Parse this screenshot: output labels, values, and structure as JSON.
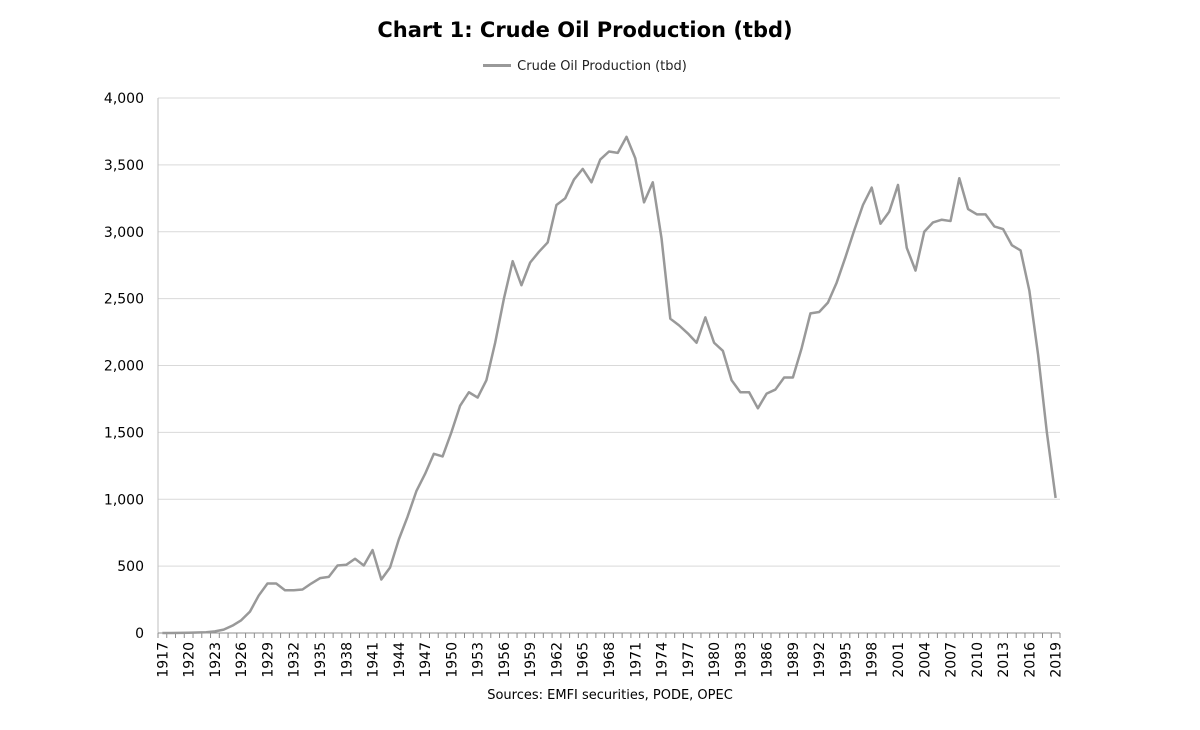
{
  "chart_data": {
    "type": "line",
    "title": "Chart 1: Crude Oil Production (tbd)",
    "legend": "top-center",
    "source": "Sources: EMFI securities, PODE, OPEC",
    "ylim": [
      0,
      4000
    ],
    "yticks": [
      0,
      500,
      1000,
      1500,
      2000,
      2500,
      3000,
      3500,
      4000
    ],
    "ytick_labels": [
      "0",
      "500",
      "1,000",
      "1,500",
      "2,000",
      "2,500",
      "3,000",
      "3,500",
      "4,000"
    ],
    "xtick_labels": [
      "1917",
      "1920",
      "1923",
      "1926",
      "1929",
      "1932",
      "1935",
      "1938",
      "1941",
      "1944",
      "1947",
      "1950",
      "1953",
      "1956",
      "1959",
      "1962",
      "1965",
      "1968",
      "1971",
      "1974",
      "1977",
      "1980",
      "1983",
      "1986",
      "1989",
      "1992",
      "1995",
      "1998",
      "2001",
      "2004",
      "2007",
      "2010",
      "2013",
      "2016",
      "2019"
    ],
    "grid": true,
    "series": [
      {
        "name": "Crude Oil Production (tbd)",
        "color": "#999999",
        "x": [
          "1917",
          "1918",
          "1919",
          "1920",
          "1921",
          "1922",
          "1923",
          "1924",
          "1925",
          "1926",
          "1927",
          "1928",
          "1929",
          "1930",
          "1931",
          "1932",
          "1933",
          "1934",
          "1935",
          "1936",
          "1937",
          "1938",
          "1939",
          "1940",
          "1941",
          "1942",
          "1943",
          "1944",
          "1945",
          "1946",
          "1947",
          "1948",
          "1949",
          "1950",
          "1951",
          "1952",
          "1953",
          "1954",
          "1955",
          "1956",
          "1957",
          "1958",
          "1959",
          "1960",
          "1961",
          "1962",
          "1963",
          "1964",
          "1965",
          "1966",
          "1967",
          "1968",
          "1969",
          "1970",
          "1971",
          "1972",
          "1973",
          "1974",
          "1975",
          "1976",
          "1977",
          "1978",
          "1979",
          "1980",
          "1981",
          "1982",
          "1983",
          "1984",
          "1985",
          "1986",
          "1987",
          "1988",
          "1989",
          "1990",
          "1991",
          "1992",
          "1993",
          "1994",
          "1995",
          "1996",
          "1997",
          "1998",
          "1999",
          "2000",
          "2001",
          "2002",
          "2003",
          "2004",
          "2005",
          "2006",
          "2007",
          "2008",
          "2009",
          "2010",
          "2011",
          "2012",
          "2013",
          "2014",
          "2015",
          "2016",
          "2017",
          "2018",
          "2019"
        ],
        "values": [
          0,
          0,
          1,
          2,
          4,
          6,
          12,
          25,
          55,
          95,
          160,
          280,
          370,
          370,
          320,
          320,
          325,
          370,
          410,
          420,
          505,
          510,
          555,
          505,
          620,
          400,
          490,
          700,
          870,
          1060,
          1190,
          1340,
          1320,
          1500,
          1700,
          1800,
          1760,
          1890,
          2170,
          2500,
          2780,
          2600,
          2770,
          2850,
          2920,
          3200,
          3250,
          3390,
          3470,
          3370,
          3540,
          3600,
          3590,
          3710,
          3550,
          3220,
          3370,
          2950,
          2350,
          2300,
          2240,
          2170,
          2360,
          2170,
          2110,
          1890,
          1800,
          1800,
          1680,
          1790,
          1820,
          1910,
          1910,
          2130,
          2390,
          2400,
          2470,
          2620,
          2810,
          3010,
          3200,
          3330,
          3060,
          3150,
          3350,
          2880,
          2710,
          3000,
          3070,
          3090,
          3080,
          3400,
          3170,
          3130,
          3130,
          3040,
          3020,
          2900,
          2860,
          2560,
          2080,
          1500,
          1010
        ]
      }
    ]
  }
}
